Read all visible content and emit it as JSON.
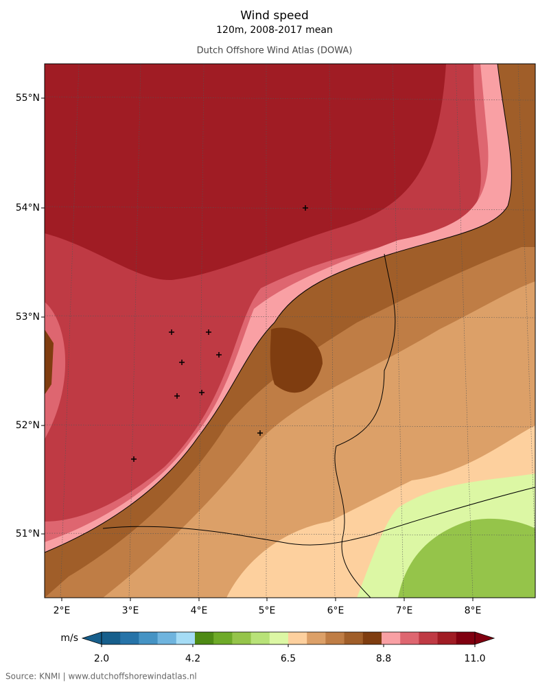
{
  "header": {
    "title": "Wind speed",
    "subtitle": "120m, 2008-2017 mean",
    "source_name": "Dutch Offshore Wind Atlas (DOWA)"
  },
  "map": {
    "lat_labels": [
      "55°N",
      "54°N",
      "53°N",
      "52°N",
      "51°N"
    ],
    "lon_labels": [
      "2°E",
      "3°E",
      "4°E",
      "5°E",
      "6°E",
      "7°E",
      "8°E"
    ]
  },
  "colorbar": {
    "unit": "m/s",
    "range": [
      2.0,
      11.0
    ],
    "ticks": [
      {
        "value": 2.0,
        "label": "2.0"
      },
      {
        "value": 4.2,
        "label": "4.2"
      },
      {
        "value": 6.5,
        "label": "6.5"
      },
      {
        "value": 8.8,
        "label": "8.8"
      },
      {
        "value": 11.0,
        "label": "11.0"
      }
    ],
    "colors": [
      "#175f8c",
      "#2673a8",
      "#4593c4",
      "#6fb4de",
      "#a5dcf5",
      "#4e8a14",
      "#6eaa28",
      "#95c44a",
      "#b8e278",
      "#dcf7a4",
      "#fdd09e",
      "#dca068",
      "#bf7d45",
      "#a05e29",
      "#7f3d10",
      "#f9a0a4",
      "#de6670",
      "#bf3a44",
      "#a01c24",
      "#800010"
    ]
  },
  "footer": "Source: KNMI | www.dutchoffshorewindatlas.nl"
}
